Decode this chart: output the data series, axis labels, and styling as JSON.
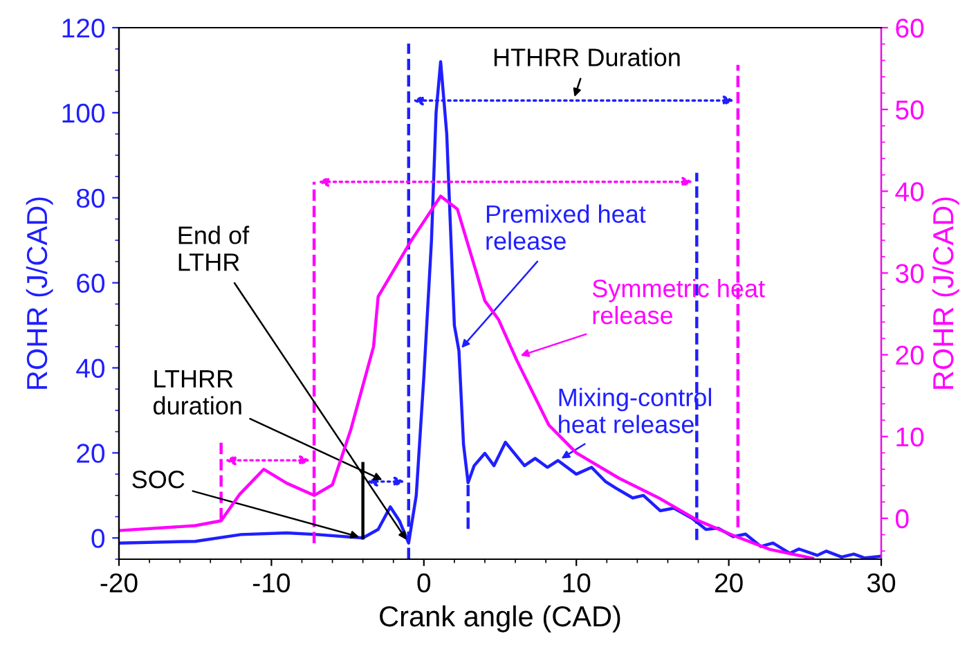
{
  "chart_data": {
    "type": "line",
    "xlabel": "Crank angle (CAD)",
    "ylabel": "ROHR (J/CAD)",
    "y2label": "ROHR (J/CAD)",
    "xlim": [
      -20,
      30
    ],
    "xticks": [
      -20,
      -10,
      0,
      10,
      20,
      30
    ],
    "ylim": [
      -5,
      120
    ],
    "yticks": [
      0,
      20,
      40,
      60,
      80,
      100,
      120
    ],
    "y2lim": [
      -5,
      60
    ],
    "y2ticks": [
      0,
      10,
      20,
      30,
      40,
      50,
      60
    ],
    "grid": false,
    "legend": false,
    "marker": "none",
    "line_style": "solid",
    "series": [
      {
        "color": "#1f1fff",
        "x": [
          -20,
          -15,
          -12,
          -9,
          -7,
          -4,
          -3,
          -2.2,
          -1.6,
          -1.0,
          -0.5,
          0,
          0.5,
          0.8,
          1.1,
          1.5,
          2.0,
          2.3,
          2.6,
          2.9,
          3.3,
          4.0,
          4.6,
          5.35,
          6.6,
          7.3,
          8.1,
          8.8,
          10,
          11,
          11.9,
          12.6,
          13.7,
          14.4,
          15.5,
          16.4,
          17.6,
          18.5,
          19.3,
          20.3,
          21.1,
          22.1,
          22.9,
          24,
          24.6,
          25.8,
          26.4,
          27.4,
          28.2,
          28.9,
          30
        ],
        "values": [
          -1.2,
          -0.8,
          0.8,
          1.2,
          0.8,
          0,
          2,
          7.3,
          4,
          -1.2,
          10,
          38,
          70,
          100,
          112,
          95,
          50,
          44,
          22,
          13,
          17,
          19.9,
          17,
          22.5,
          17,
          18.7,
          16.6,
          18.2,
          15,
          16.6,
          13.3,
          11.7,
          9.4,
          10,
          6.4,
          7,
          4.6,
          2,
          2.3,
          0.3,
          0.9,
          -2,
          -1.2,
          -3.6,
          -2.6,
          -4.1,
          -3.1,
          -4.5,
          -3.8,
          -4.7,
          -4.3
        ]
      },
      {
        "color": "#ff00ff",
        "axis": "y2",
        "x": [
          -20,
          -15,
          -13.3,
          -12.1,
          -10.5,
          -9,
          -7.2,
          -6,
          -4.8,
          -3.3,
          -3.0,
          -0.85,
          1.1,
          2.2,
          4.0,
          4.9,
          6.1,
          8.2,
          10,
          12.8,
          15.5,
          17.9,
          20.3,
          22.7,
          25.5
        ],
        "values": [
          -1.5,
          -0.9,
          -0.3,
          2.9,
          6.0,
          4.3,
          2.8,
          4.1,
          10.8,
          21,
          27.1,
          33.9,
          39.4,
          37.8,
          26.6,
          24.3,
          19.3,
          11.4,
          8.0,
          4.9,
          2.4,
          -0.2,
          -2.1,
          -3.8,
          -4.9
        ]
      }
    ],
    "ref_lines": [
      {
        "axis": "x",
        "value": -13.3,
        "color": "#ff00ff",
        "line_style": "dashed"
      },
      {
        "axis": "x",
        "value": -7.2,
        "color": "#ff00ff",
        "line_style": "dashed"
      },
      {
        "axis": "x",
        "value": -4,
        "color": "#000000",
        "line_style": "solid"
      },
      {
        "axis": "x",
        "value": -1,
        "color": "#1f1fff",
        "line_style": "dashed"
      },
      {
        "axis": "x",
        "value": 2.9,
        "color": "#1f1fff",
        "line_style": "dashed"
      },
      {
        "axis": "x",
        "value": 17.9,
        "color": "#1f1fff",
        "line_style": "dashed"
      },
      {
        "axis": "x",
        "value": 20.6,
        "color": "#ff00ff",
        "line_style": "dashed"
      }
    ],
    "annotations": [
      {
        "text": "End of\nLTHR",
        "x": -1.0,
        "y": -1.2
      },
      "LTHRR\nduration",
      {
        "text": "SOC",
        "x": -4,
        "y": 0
      },
      "HTHRR Duration",
      {
        "text": "Premixed heat\nrelease",
        "x": 2.3,
        "y": 44
      },
      {
        "text": "Symmetric heat\nrelease",
        "x": 6.1,
        "y": 42.6
      },
      {
        "text": "Mixing-control\nheat release",
        "x": 8.8,
        "y": 18.2
      }
    ]
  }
}
